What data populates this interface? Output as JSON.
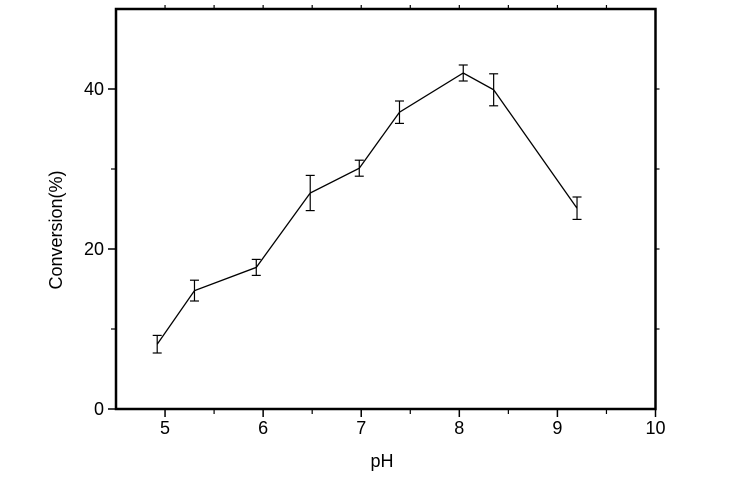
{
  "figure": {
    "background": "#ffffff",
    "axis_color": "#000000",
    "text_color": "#000000"
  },
  "chart_data": {
    "type": "line",
    "title": "",
    "xlabel": "pH",
    "ylabel": "Conversion(%)",
    "xlim": [
      4.5,
      10
    ],
    "ylim": [
      0,
      50
    ],
    "x_major_ticks": [
      5,
      6,
      7,
      8,
      9,
      10
    ],
    "x_minor_ticks": [
      5.5,
      6.5,
      7.5,
      8.5,
      9.5
    ],
    "y_major_ticks": [
      0,
      20,
      40
    ],
    "y_minor_ticks": [
      10,
      30
    ],
    "grid": false,
    "legend": false,
    "frame": "box",
    "ticks_direction": "out",
    "series": [
      {
        "name": "conversion-vs-ph",
        "color": "#000000",
        "marker": "none",
        "error_bars": true,
        "x": [
          4.92,
          5.3,
          5.93,
          6.48,
          6.98,
          7.39,
          8.04,
          8.35,
          9.2
        ],
        "y": [
          8.1,
          14.8,
          17.7,
          27.0,
          30.1,
          37.1,
          42.0,
          39.9,
          25.1
        ],
        "yerr": [
          1.1,
          1.3,
          1.0,
          2.2,
          1.0,
          1.4,
          1.0,
          2.0,
          1.4
        ]
      }
    ]
  }
}
